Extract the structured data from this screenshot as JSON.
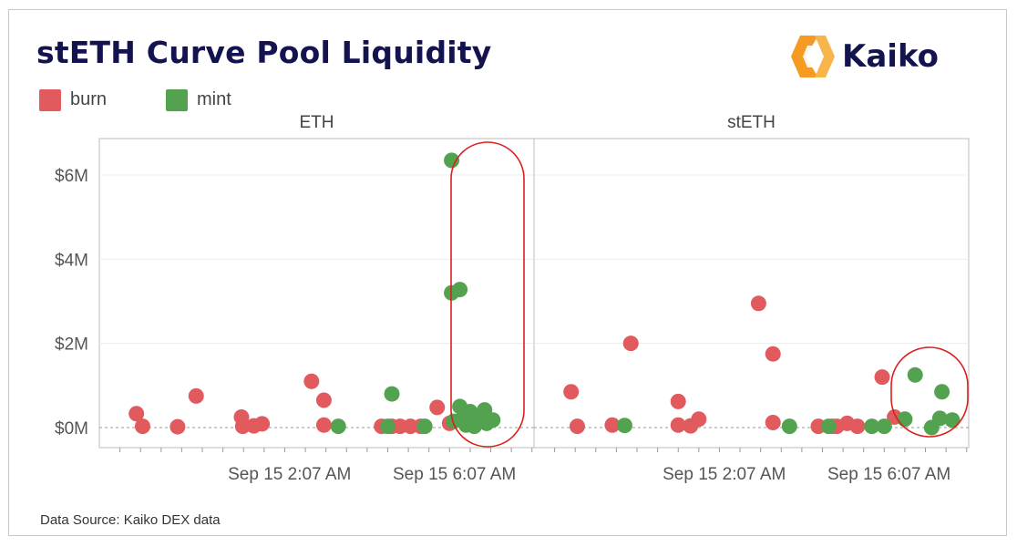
{
  "header": {
    "title": "stETH Curve Pool Liquidity",
    "logo_text": "Kaiko"
  },
  "footer": {
    "source": "Data Source: Kaiko DEX data"
  },
  "colors": {
    "burn": "#e05a5e",
    "mint": "#53a24f",
    "highlight": "#dd1f1f",
    "title": "#13144f",
    "logo_orange": "#f59a23"
  },
  "chart_data": {
    "type": "scatter",
    "title": "stETH Curve Pool Liquidity",
    "legend": {
      "placement": "top-left",
      "entries": [
        {
          "name": "burn",
          "color": "#e05a5e"
        },
        {
          "name": "mint",
          "color": "#53a24f"
        }
      ]
    },
    "y_ticks": [
      "$0M",
      "$2M",
      "$4M",
      "$6M"
    ],
    "y_tick_values": [
      0,
      2,
      4,
      6
    ],
    "ylim": [
      -0.5,
      6.8
    ],
    "x_ticks": [
      "Sep 15 2:07 AM",
      "Sep 15 6:07 AM"
    ],
    "x_tick_hours": [
      2.117,
      6.117
    ],
    "xlim": [
      -2.5,
      8.05
    ],
    "grid": true,
    "panels": [
      {
        "label": "ETH",
        "highlight_hours": [
          6.3,
          8.05
        ],
        "series": [
          {
            "name": "burn",
            "points": [
              [
                -1.6,
                0.33
              ],
              [
                -1.45,
                0.03
              ],
              [
                -0.6,
                0.02
              ],
              [
                -0.15,
                0.75
              ],
              [
                0.95,
                0.25
              ],
              [
                0.98,
                0.03
              ],
              [
                1.25,
                0.04
              ],
              [
                1.45,
                0.09
              ],
              [
                2.65,
                1.1
              ],
              [
                2.95,
                0.65
              ],
              [
                2.95,
                0.06
              ],
              [
                5.7,
                0.48
              ],
              [
                6.0,
                0.1
              ],
              [
                4.35,
                0.03
              ],
              [
                4.6,
                0.03
              ],
              [
                4.8,
                0.03
              ],
              [
                5.05,
                0.03
              ],
              [
                5.3,
                0.03
              ]
            ]
          },
          {
            "name": "mint",
            "points": [
              [
                6.05,
                6.35
              ],
              [
                6.05,
                3.2
              ],
              [
                6.25,
                3.28
              ],
              [
                6.25,
                0.5
              ],
              [
                3.3,
                0.03
              ],
              [
                4.6,
                0.8
              ],
              [
                4.5,
                0.03
              ],
              [
                5.4,
                0.03
              ],
              [
                6.1,
                0.15
              ],
              [
                6.3,
                0.2
              ],
              [
                6.5,
                0.38
              ],
              [
                6.6,
                0.03
              ],
              [
                6.7,
                0.25
              ],
              [
                6.85,
                0.42
              ],
              [
                6.9,
                0.1
              ],
              [
                7.05,
                0.18
              ],
              [
                6.4,
                0.06
              ],
              [
                6.75,
                0.15
              ]
            ]
          }
        ]
      },
      {
        "label": "stETH",
        "highlight_hours": [
          5.45,
          8.05
        ],
        "series": [
          {
            "name": "burn",
            "points": [
              [
                -1.6,
                0.85
              ],
              [
                -1.45,
                0.03
              ],
              [
                -0.15,
                2.0
              ],
              [
                -0.6,
                0.06
              ],
              [
                1.0,
                0.62
              ],
              [
                1.0,
                0.06
              ],
              [
                1.3,
                0.04
              ],
              [
                1.5,
                0.2
              ],
              [
                2.95,
                2.95
              ],
              [
                3.3,
                1.75
              ],
              [
                3.3,
                0.12
              ],
              [
                4.4,
                0.03
              ],
              [
                4.75,
                0.03
              ],
              [
                4.85,
                0.03
              ],
              [
                5.1,
                0.1
              ],
              [
                5.35,
                0.03
              ],
              [
                5.95,
                1.2
              ],
              [
                6.25,
                0.25
              ]
            ]
          },
          {
            "name": "mint",
            "points": [
              [
                -0.3,
                0.05
              ],
              [
                3.7,
                0.03
              ],
              [
                4.65,
                0.03
              ],
              [
                5.7,
                0.03
              ],
              [
                6.0,
                0.03
              ],
              [
                6.5,
                0.2
              ],
              [
                6.75,
                1.25
              ],
              [
                7.15,
                0.0
              ],
              [
                7.4,
                0.85
              ],
              [
                7.35,
                0.22
              ],
              [
                7.65,
                0.18
              ]
            ]
          }
        ]
      }
    ]
  }
}
